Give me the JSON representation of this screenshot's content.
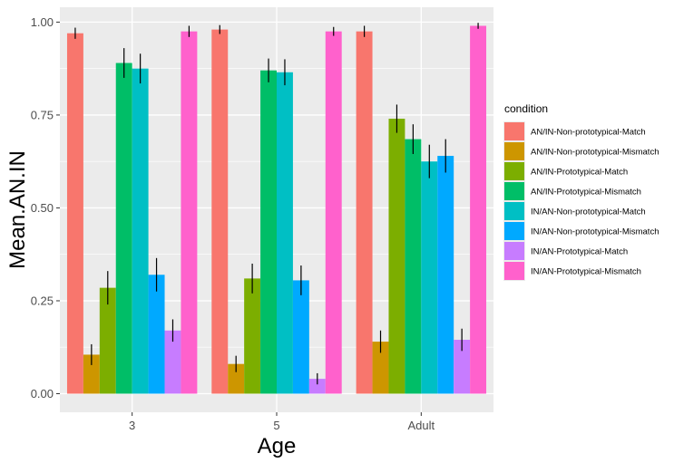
{
  "chart_data": {
    "type": "bar",
    "title": "",
    "xlabel": "Age",
    "ylabel": "Mean.AN.IN",
    "ylim": [
      -0.05,
      1.04
    ],
    "yticks": [
      0,
      0.25,
      0.5,
      0.75,
      1
    ],
    "ytick_labels": [
      "0.00",
      "0.25",
      "0.50",
      "0.75",
      "1.00"
    ],
    "grid": true,
    "legend_title": "condition",
    "legend_position": "right",
    "categories": [
      "3",
      "5",
      "Adult"
    ],
    "series": [
      {
        "name": "AN/IN-Non-prototypical-Match",
        "color": "#F8766D",
        "values": [
          0.97,
          0.98,
          0.975
        ],
        "errors": [
          0.015,
          0.012,
          0.015
        ]
      },
      {
        "name": "AN/IN-Non-prototypical-Mismatch",
        "color": "#CD9600",
        "values": [
          0.105,
          0.08,
          0.14
        ],
        "errors": [
          0.028,
          0.022,
          0.03
        ]
      },
      {
        "name": "AN/IN-Prototypical-Match",
        "color": "#7CAE00",
        "values": [
          0.285,
          0.31,
          0.74
        ],
        "errors": [
          0.045,
          0.04,
          0.038
        ]
      },
      {
        "name": "AN/IN-Prototypical-Mismatch",
        "color": "#00BE67",
        "values": [
          0.89,
          0.87,
          0.685
        ],
        "errors": [
          0.04,
          0.032,
          0.04
        ]
      },
      {
        "name": "IN/AN-Non-prototypical-Match",
        "color": "#00BFC4",
        "values": [
          0.875,
          0.865,
          0.625
        ],
        "errors": [
          0.04,
          0.035,
          0.045
        ]
      },
      {
        "name": "IN/AN-Non-prototypical-Mismatch",
        "color": "#00A9FF",
        "values": [
          0.32,
          0.305,
          0.64
        ],
        "errors": [
          0.045,
          0.04,
          0.045
        ]
      },
      {
        "name": "IN/AN-Prototypical-Match",
        "color": "#C77CFF",
        "values": [
          0.17,
          0.04,
          0.145
        ],
        "errors": [
          0.03,
          0.015,
          0.03
        ]
      },
      {
        "name": "IN/AN-Prototypical-Mismatch",
        "color": "#FF61CC",
        "values": [
          0.975,
          0.975,
          0.99
        ],
        "errors": [
          0.015,
          0.012,
          0.008
        ]
      }
    ]
  }
}
